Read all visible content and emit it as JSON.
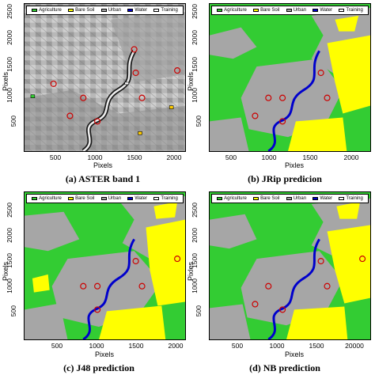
{
  "legend": {
    "items": [
      {
        "label": "Agriculture",
        "color": "#33cc33"
      },
      {
        "label": "Bare Soil",
        "color": "#ffff00"
      },
      {
        "label": "Urban",
        "color": "#a6a6a6"
      },
      {
        "label": "Water",
        "color": "#0000cc"
      },
      {
        "label": "Training",
        "color": "#ffffff"
      }
    ]
  },
  "panels": [
    {
      "caption": "(a)  ASTER band 1",
      "ylabel": "Pixels",
      "xlabel": "Pixels",
      "yticks": [
        "2500",
        "2000",
        "1500",
        "1000",
        "500"
      ],
      "xticks": [
        "500",
        "1000",
        "1500",
        "2000"
      ],
      "kind": "band"
    },
    {
      "caption": "(b)  JRip predicion",
      "ylabel": "Pixels",
      "xlabel": "Pixles",
      "yticks": [
        "2500",
        "2000",
        "1500",
        "1000",
        "500"
      ],
      "xticks": [
        "500",
        "1000",
        "1500",
        "2000"
      ],
      "kind": "classified"
    },
    {
      "caption": "(c)  J48 prediction",
      "ylabel": "Pixels",
      "xlabel": "Pixels",
      "yticks": [
        "2500",
        "2000",
        "1500",
        "1000",
        "500"
      ],
      "xticks": [
        "500",
        "1000",
        "1500",
        "2000"
      ],
      "kind": "classified"
    },
    {
      "caption": "(d)  NB prediction",
      "ylabel": "Pixles",
      "xlabel": "Pixels",
      "yticks": [
        "2500",
        "2000",
        "1500",
        "1000",
        "500"
      ],
      "xticks": [
        "500",
        "1000",
        "1500",
        "20000"
      ],
      "kind": "classified"
    }
  ]
}
